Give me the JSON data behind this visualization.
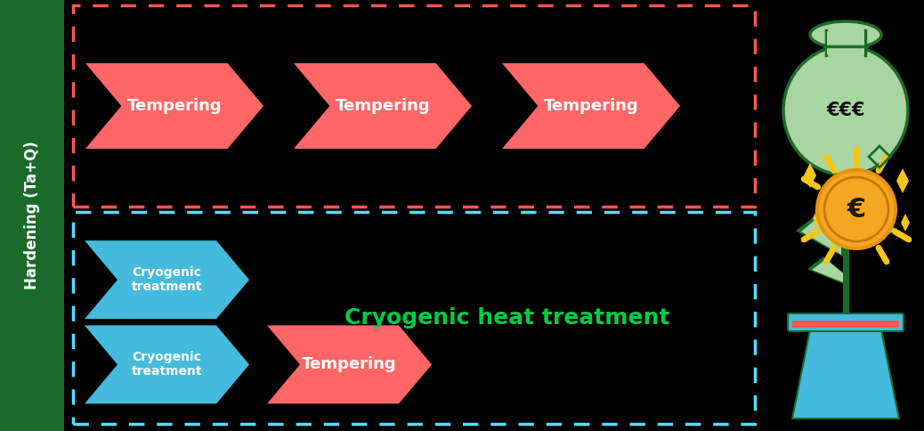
{
  "bg_color": "#000000",
  "left_bar_color": "#1a6b2a",
  "left_bar_text": "Hardening (Ta+Q)",
  "left_bar_text_color": "#ffffff",
  "top_box_border_color": "#ff5555",
  "bottom_box_border_color": "#55ddff",
  "tempering_color": "#ff6666",
  "cryo_color": "#44bbdd",
  "cryo_text_color": "#ffffff",
  "tempering_text_color": "#ffffff",
  "cryo_label": "Cryogenic\ntreatment",
  "tempering_label": "Tempering",
  "cryo_heat_text": "Cryogenic heat treatment",
  "cryo_heat_text_color": "#00cc44",
  "money_bag_fill": "#a8d5a2",
  "money_bag_border": "#1a6b2a",
  "money_bag_text": "€€€",
  "plant_euro": "€",
  "coin_fill": "#f5a623",
  "coin_rim": "#e8930a",
  "coin_text_color": "#1a1a00",
  "plant_stem_color": "#1a6b2a",
  "leaf_dark": "#1a6b2a",
  "leaf_light": "#a8d5a2",
  "pot_fill": "#44bbdd",
  "pot_border": "#1a6b2a",
  "pot_stripe": "#ff5555",
  "ray_color": "#f5c518",
  "sparkle_color": "#f5c518",
  "arrow_fontsize": 13,
  "cryo_fontsize": 10,
  "cryo_heat_fontsize": 18
}
